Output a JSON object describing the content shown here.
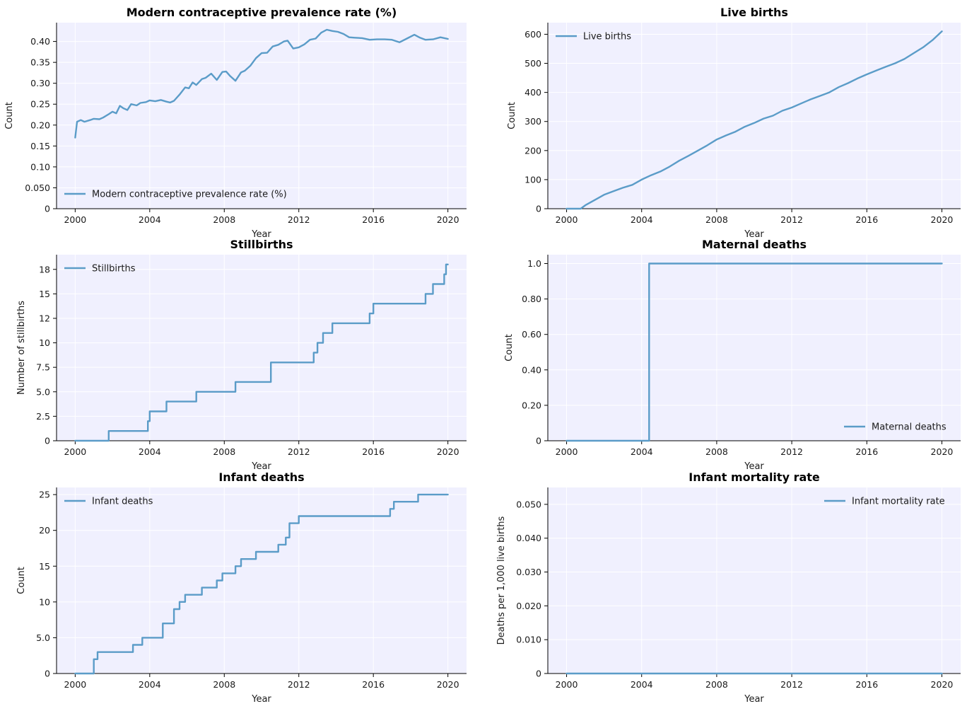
{
  "colors": {
    "series": "#5b9cc8",
    "plot_background": "#f0f0fe"
  },
  "chart_data": [
    {
      "type": "line",
      "title": "Modern contraceptive prevalence rate (%)",
      "xlabel": "Year",
      "ylabel": "Count",
      "xlim": [
        1999.0,
        2021.0
      ],
      "ylim": [
        0,
        0.445
      ],
      "xticks": [
        2000,
        2004,
        2008,
        2012,
        2016,
        2020
      ],
      "xtick_labels": [
        "2000",
        "2004",
        "2008",
        "2012",
        "2016",
        "2020"
      ],
      "yticks": [
        0,
        0.05,
        0.1,
        0.15,
        0.2,
        0.25,
        0.3,
        0.35,
        0.4
      ],
      "ytick_labels": [
        "0",
        "0.050",
        "0.10",
        "0.15",
        "0.20",
        "0.25",
        "0.30",
        "0.35",
        "0.40"
      ],
      "legend_position": "lower-left",
      "series": [
        {
          "name": "Modern contraceptive prevalence rate (%)",
          "points": [
            [
              2000.0,
              0.17
            ],
            [
              2000.1,
              0.208
            ],
            [
              2000.3,
              0.212
            ],
            [
              2000.5,
              0.208
            ],
            [
              2000.8,
              0.212
            ],
            [
              2001.0,
              0.215
            ],
            [
              2001.3,
              0.214
            ],
            [
              2001.5,
              0.218
            ],
            [
              2001.8,
              0.226
            ],
            [
              2002.0,
              0.232
            ],
            [
              2002.2,
              0.228
            ],
            [
              2002.4,
              0.246
            ],
            [
              2002.6,
              0.24
            ],
            [
              2002.8,
              0.236
            ],
            [
              2003.0,
              0.25
            ],
            [
              2003.3,
              0.247
            ],
            [
              2003.5,
              0.253
            ],
            [
              2003.8,
              0.255
            ],
            [
              2004.0,
              0.259
            ],
            [
              2004.3,
              0.257
            ],
            [
              2004.6,
              0.26
            ],
            [
              2004.9,
              0.256
            ],
            [
              2005.1,
              0.254
            ],
            [
              2005.3,
              0.258
            ],
            [
              2005.6,
              0.273
            ],
            [
              2005.9,
              0.29
            ],
            [
              2006.1,
              0.288
            ],
            [
              2006.3,
              0.302
            ],
            [
              2006.5,
              0.296
            ],
            [
              2006.8,
              0.31
            ],
            [
              2007.0,
              0.313
            ],
            [
              2007.3,
              0.323
            ],
            [
              2007.6,
              0.308
            ],
            [
              2007.9,
              0.327
            ],
            [
              2008.1,
              0.328
            ],
            [
              2008.3,
              0.318
            ],
            [
              2008.6,
              0.306
            ],
            [
              2008.9,
              0.326
            ],
            [
              2009.1,
              0.33
            ],
            [
              2009.4,
              0.342
            ],
            [
              2009.7,
              0.36
            ],
            [
              2010.0,
              0.372
            ],
            [
              2010.3,
              0.373
            ],
            [
              2010.6,
              0.388
            ],
            [
              2010.9,
              0.392
            ],
            [
              2011.2,
              0.4
            ],
            [
              2011.4,
              0.402
            ],
            [
              2011.7,
              0.383
            ],
            [
              2012.0,
              0.386
            ],
            [
              2012.3,
              0.393
            ],
            [
              2012.6,
              0.404
            ],
            [
              2012.9,
              0.407
            ],
            [
              2013.2,
              0.421
            ],
            [
              2013.5,
              0.428
            ],
            [
              2013.8,
              0.425
            ],
            [
              2014.1,
              0.423
            ],
            [
              2014.4,
              0.418
            ],
            [
              2014.7,
              0.41
            ],
            [
              2015.0,
              0.409
            ],
            [
              2015.4,
              0.408
            ],
            [
              2015.8,
              0.404
            ],
            [
              2016.2,
              0.405
            ],
            [
              2016.6,
              0.405
            ],
            [
              2017.0,
              0.404
            ],
            [
              2017.4,
              0.398
            ],
            [
              2017.8,
              0.407
            ],
            [
              2018.2,
              0.416
            ],
            [
              2018.5,
              0.409
            ],
            [
              2018.8,
              0.404
            ],
            [
              2019.2,
              0.405
            ],
            [
              2019.6,
              0.41
            ],
            [
              2020.0,
              0.406
            ]
          ]
        }
      ]
    },
    {
      "type": "line",
      "title": "Live births",
      "xlabel": "Year",
      "ylabel": "Count",
      "xlim": [
        1999.0,
        2021.0
      ],
      "ylim": [
        0,
        640
      ],
      "xticks": [
        2000,
        2004,
        2008,
        2012,
        2016,
        2020
      ],
      "xtick_labels": [
        "2000",
        "2004",
        "2008",
        "2012",
        "2016",
        "2020"
      ],
      "yticks": [
        0,
        100,
        200,
        300,
        400,
        500,
        600
      ],
      "ytick_labels": [
        "0",
        "100",
        "200",
        "300",
        "400",
        "500",
        "600"
      ],
      "legend_position": "top-left",
      "series": [
        {
          "name": "Live births",
          "points": [
            [
              2000.0,
              0
            ],
            [
              2000.5,
              0
            ],
            [
              2000.75,
              0
            ],
            [
              2001.0,
              12
            ],
            [
              2001.5,
              30
            ],
            [
              2002.0,
              48
            ],
            [
              2002.5,
              60
            ],
            [
              2003.0,
              72
            ],
            [
              2003.5,
              82
            ],
            [
              2004.0,
              100
            ],
            [
              2004.5,
              115
            ],
            [
              2005.0,
              128
            ],
            [
              2005.5,
              145
            ],
            [
              2006.0,
              165
            ],
            [
              2006.5,
              182
            ],
            [
              2007.0,
              200
            ],
            [
              2007.5,
              218
            ],
            [
              2008.0,
              238
            ],
            [
              2008.5,
              252
            ],
            [
              2009.0,
              265
            ],
            [
              2009.5,
              282
            ],
            [
              2010.0,
              295
            ],
            [
              2010.5,
              310
            ],
            [
              2011.0,
              320
            ],
            [
              2011.5,
              337
            ],
            [
              2012.0,
              348
            ],
            [
              2012.5,
              362
            ],
            [
              2013.0,
              376
            ],
            [
              2013.5,
              388
            ],
            [
              2014.0,
              400
            ],
            [
              2014.5,
              418
            ],
            [
              2015.0,
              432
            ],
            [
              2015.5,
              448
            ],
            [
              2016.0,
              462
            ],
            [
              2016.5,
              475
            ],
            [
              2017.0,
              488
            ],
            [
              2017.5,
              500
            ],
            [
              2018.0,
              515
            ],
            [
              2018.5,
              535
            ],
            [
              2019.0,
              555
            ],
            [
              2019.5,
              580
            ],
            [
              2020.0,
              610
            ]
          ]
        }
      ]
    },
    {
      "type": "line",
      "title": "Stillbirths",
      "xlabel": "Year",
      "ylabel": "Number of stillbirths",
      "xlim": [
        1999.0,
        2021.0
      ],
      "ylim": [
        0,
        19.0
      ],
      "xticks": [
        2000,
        2004,
        2008,
        2012,
        2016,
        2020
      ],
      "xtick_labels": [
        "2000",
        "2004",
        "2008",
        "2012",
        "2016",
        "2020"
      ],
      "yticks": [
        0,
        2.5,
        5.0,
        7.5,
        10,
        12.5,
        15,
        17.5
      ],
      "ytick_labels": [
        "0",
        "2.5",
        "5.0",
        "7.5",
        "10",
        "12",
        "15",
        "18"
      ],
      "legend_position": "top-left",
      "step": true,
      "series": [
        {
          "name": "Stillbirths",
          "points": [
            [
              2000.0,
              0
            ],
            [
              2001.8,
              1
            ],
            [
              2003.9,
              2
            ],
            [
              2004.0,
              3
            ],
            [
              2004.9,
              4
            ],
            [
              2006.5,
              5
            ],
            [
              2008.6,
              6
            ],
            [
              2010.5,
              8
            ],
            [
              2012.8,
              9
            ],
            [
              2013.0,
              10
            ],
            [
              2013.3,
              11
            ],
            [
              2013.8,
              12
            ],
            [
              2015.8,
              13
            ],
            [
              2016.0,
              14
            ],
            [
              2018.8,
              15
            ],
            [
              2019.2,
              16
            ],
            [
              2019.8,
              17
            ],
            [
              2019.9,
              18
            ],
            [
              2020.0,
              18
            ]
          ]
        }
      ]
    },
    {
      "type": "line",
      "title": "Maternal deaths",
      "xlabel": "Year",
      "ylabel": "Count",
      "xlim": [
        1999.0,
        2021.0
      ],
      "ylim": [
        0,
        1.05
      ],
      "xticks": [
        2000,
        2004,
        2008,
        2012,
        2016,
        2020
      ],
      "xtick_labels": [
        "2000",
        "2004",
        "2008",
        "2012",
        "2016",
        "2020"
      ],
      "yticks": [
        0,
        0.2,
        0.4,
        0.6,
        0.8,
        1.0
      ],
      "ytick_labels": [
        "0",
        "0.20",
        "0.40",
        "0.60",
        "0.80",
        "1.0"
      ],
      "legend_position": "lower-right",
      "step": true,
      "series": [
        {
          "name": "Maternal deaths",
          "points": [
            [
              2000.0,
              0
            ],
            [
              2004.4,
              1
            ],
            [
              2020.0,
              1
            ]
          ]
        }
      ]
    },
    {
      "type": "line",
      "title": "Infant deaths",
      "xlabel": "Year",
      "ylabel": "Count",
      "xlim": [
        1999.0,
        2021.0
      ],
      "ylim": [
        0,
        26.0
      ],
      "xticks": [
        2000,
        2004,
        2008,
        2012,
        2016,
        2020
      ],
      "xtick_labels": [
        "2000",
        "2004",
        "2008",
        "2012",
        "2016",
        "2020"
      ],
      "yticks": [
        0,
        5,
        10,
        15,
        20,
        25
      ],
      "ytick_labels": [
        "0",
        "5.0",
        "10",
        "15",
        "20",
        "25"
      ],
      "legend_position": "top-left",
      "step": true,
      "series": [
        {
          "name": "Infant deaths",
          "points": [
            [
              2000.0,
              0
            ],
            [
              2001.0,
              2
            ],
            [
              2001.2,
              3
            ],
            [
              2003.1,
              4
            ],
            [
              2003.6,
              5
            ],
            [
              2004.7,
              7
            ],
            [
              2005.3,
              9
            ],
            [
              2005.6,
              10
            ],
            [
              2005.9,
              11
            ],
            [
              2006.8,
              12
            ],
            [
              2007.6,
              13
            ],
            [
              2007.9,
              14
            ],
            [
              2008.6,
              15
            ],
            [
              2008.9,
              16
            ],
            [
              2009.7,
              17
            ],
            [
              2010.9,
              18
            ],
            [
              2011.3,
              19
            ],
            [
              2011.5,
              21
            ],
            [
              2012.0,
              22
            ],
            [
              2016.9,
              23
            ],
            [
              2017.1,
              24
            ],
            [
              2018.4,
              25
            ],
            [
              2020.0,
              25
            ]
          ]
        }
      ]
    },
    {
      "type": "line",
      "title": "Infant mortality rate",
      "xlabel": "Year",
      "ylabel": "Deaths per 1,000 live births",
      "xlim": [
        1999.0,
        2021.0
      ],
      "ylim": [
        0,
        0.055
      ],
      "xticks": [
        2000,
        2004,
        2008,
        2012,
        2016,
        2020
      ],
      "xtick_labels": [
        "2000",
        "2004",
        "2008",
        "2012",
        "2016",
        "2020"
      ],
      "yticks": [
        0,
        0.01,
        0.02,
        0.03,
        0.04,
        0.05
      ],
      "ytick_labels": [
        "0",
        "0.010",
        "0.020",
        "0.030",
        "0.040",
        "0.050"
      ],
      "legend_position": "top-right",
      "series": [
        {
          "name": "Infant mortality rate",
          "points": [
            [
              2000.0,
              0
            ],
            [
              2020.0,
              0
            ]
          ]
        }
      ]
    }
  ]
}
